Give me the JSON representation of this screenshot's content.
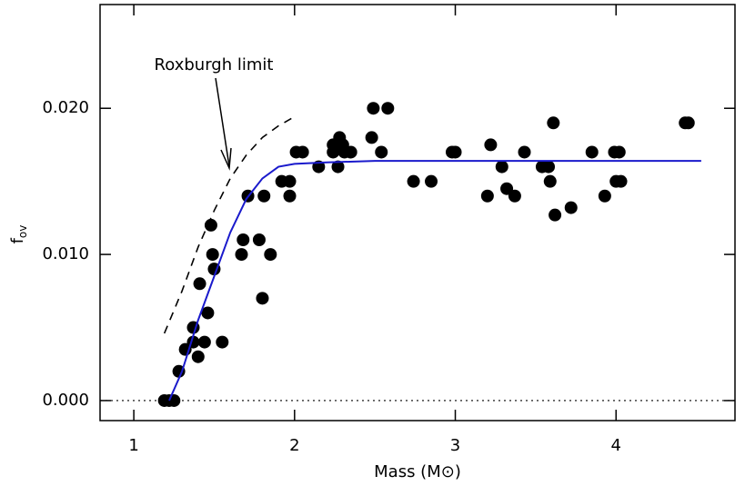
{
  "chart_data": {
    "type": "scatter",
    "annotation": "Roxburgh limit",
    "xlabel": "Mass (M⊙)",
    "ylabel": "f",
    "ylabel_sub": "ov",
    "xlim": [
      0.79,
      4.74
    ],
    "ylim": [
      -0.00137,
      0.0271
    ],
    "xticks": [
      1,
      2,
      3,
      4
    ],
    "yticks": [
      {
        "value": 0,
        "label": "0.000"
      },
      {
        "value": 0.01,
        "label": "0.010"
      },
      {
        "value": 0.02,
        "label": "0.020"
      }
    ],
    "points": {
      "color": "#000000",
      "x": [
        1.19,
        1.22,
        1.25,
        1.28,
        1.32,
        1.37,
        1.37,
        1.4,
        1.44,
        1.41,
        1.46,
        1.48,
        1.49,
        1.5,
        1.55,
        1.67,
        1.68,
        1.71,
        1.78,
        1.8,
        1.81,
        1.85,
        1.92,
        1.97,
        1.97,
        2.01,
        2.05,
        2.15,
        2.24,
        2.24,
        2.27,
        2.28,
        2.3,
        2.31,
        2.35,
        2.48,
        2.49,
        2.54,
        2.58,
        2.74,
        2.85,
        2.98,
        3.0,
        3.2,
        3.22,
        3.29,
        3.32,
        3.37,
        3.43,
        3.54,
        3.58,
        3.59,
        3.61,
        3.62,
        3.72,
        3.85,
        3.93,
        3.99,
        4.0,
        4.03,
        4.02,
        4.43,
        4.45
      ],
      "y": [
        0,
        0,
        0,
        0.002,
        0.0035,
        0.005,
        0.004,
        0.003,
        0.004,
        0.008,
        0.006,
        0.012,
        0.01,
        0.009,
        0.004,
        0.01,
        0.011,
        0.014,
        0.011,
        0.007,
        0.014,
        0.01,
        0.015,
        0.015,
        0.014,
        0.017,
        0.017,
        0.016,
        0.0175,
        0.017,
        0.016,
        0.018,
        0.0175,
        0.017,
        0.017,
        0.018,
        0.02,
        0.017,
        0.02,
        0.015,
        0.015,
        0.017,
        0.017,
        0.014,
        0.0175,
        0.016,
        0.0145,
        0.014,
        0.017,
        0.016,
        0.016,
        0.015,
        0.019,
        0.0127,
        0.0132,
        0.017,
        0.014,
        0.017,
        0.015,
        0.015,
        0.017,
        0.019,
        0.019
      ]
    },
    "fit": {
      "color": "#1a1acc",
      "x": [
        1.22,
        1.3,
        1.4,
        1.5,
        1.6,
        1.7,
        1.8,
        1.9,
        2.0,
        2.2,
        2.5,
        3.0,
        4.53
      ],
      "y": [
        0,
        0.002,
        0.0055,
        0.0085,
        0.0115,
        0.0138,
        0.0152,
        0.016,
        0.0162,
        0.0163,
        0.0164,
        0.0164,
        0.0164
      ]
    },
    "limit": {
      "color": "#000000",
      "x": [
        1.19,
        1.3,
        1.4,
        1.5,
        1.6,
        1.7,
        1.8,
        1.9,
        1.98
      ],
      "y": [
        0.0046,
        0.0075,
        0.0105,
        0.013,
        0.0152,
        0.0168,
        0.018,
        0.0188,
        0.0193
      ]
    }
  }
}
